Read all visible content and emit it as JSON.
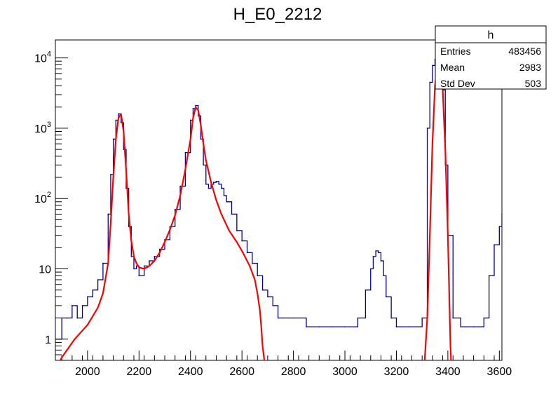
{
  "chart_data": {
    "type": "line",
    "title": "H_E0_2212",
    "xlabel": "",
    "ylabel": "",
    "xlim": [
      1875,
      3610
    ],
    "ylim": [
      0.5,
      18000
    ],
    "y_scale": "log",
    "grid": false,
    "x_ticks": [
      2000,
      2200,
      2400,
      2600,
      2800,
      3000,
      3200,
      3400,
      3600
    ],
    "x_tick_labels": [
      "2000",
      "2200",
      "2400",
      "2600",
      "2800",
      "3000",
      "3200",
      "3400",
      "3600"
    ],
    "y_ticks": [
      1,
      10,
      100,
      1000,
      10000
    ],
    "y_tick_labels": [
      {
        "base": "1",
        "exp": ""
      },
      {
        "base": "10",
        "exp": ""
      },
      {
        "base": "10",
        "exp": "2"
      },
      {
        "base": "10",
        "exp": "3"
      },
      {
        "base": "10",
        "exp": "4"
      }
    ],
    "stats_box": {
      "name": "h",
      "rows": [
        {
          "label": "Entries",
          "value": "483456"
        },
        {
          "label": "Mean",
          "value": "2983"
        },
        {
          "label": "Std Dev",
          "value": "503"
        }
      ]
    },
    "series": [
      {
        "color": "#000099",
        "style": "histogram",
        "x": [
          1880,
          1900,
          1920,
          1940,
          1960,
          1980,
          2000,
          2020,
          2040,
          2060,
          2080,
          2090,
          2100,
          2110,
          2120,
          2130,
          2140,
          2150,
          2160,
          2170,
          2180,
          2190,
          2200,
          2220,
          2240,
          2260,
          2280,
          2300,
          2320,
          2340,
          2360,
          2380,
          2400,
          2410,
          2420,
          2430,
          2440,
          2450,
          2460,
          2470,
          2480,
          2490,
          2500,
          2510,
          2520,
          2530,
          2540,
          2560,
          2580,
          2600,
          2620,
          2640,
          2660,
          2680,
          2700,
          2720,
          2740,
          2760,
          2800,
          2850,
          2900,
          2950,
          3000,
          3050,
          3080,
          3100,
          3110,
          3120,
          3130,
          3140,
          3150,
          3160,
          3180,
          3200,
          3250,
          3300,
          3320,
          3330,
          3340,
          3350,
          3360,
          3370,
          3380,
          3390,
          3400,
          3420,
          3450,
          3500,
          3540,
          3560,
          3580,
          3600,
          3610
        ],
        "y": [
          1,
          2,
          2,
          3,
          2,
          3,
          4,
          5,
          7,
          12,
          60,
          220,
          700,
          1300,
          1600,
          1200,
          500,
          140,
          40,
          15,
          10,
          11,
          8,
          11,
          13,
          15,
          19,
          26,
          40,
          70,
          150,
          450,
          1300,
          1900,
          2100,
          1500,
          700,
          300,
          160,
          140,
          160,
          170,
          175,
          160,
          140,
          110,
          90,
          60,
          35,
          25,
          17,
          12,
          8,
          5,
          4,
          3,
          2,
          2,
          2,
          1.5,
          1.5,
          1.5,
          1.5,
          2,
          5,
          10,
          15,
          18,
          17,
          13,
          8,
          4,
          2,
          1.5,
          1.5,
          2,
          1000,
          4500,
          7800,
          9500,
          9000,
          7000,
          3500,
          300,
          30,
          2,
          1.5,
          1.5,
          2,
          8,
          22,
          40,
          60
        ]
      },
      {
        "color": "#ff0000",
        "style": "curve",
        "x": [
          1880,
          1900,
          1920,
          1950,
          2000,
          2040,
          2060,
          2080,
          2090,
          2100,
          2110,
          2120,
          2130,
          2140,
          2150,
          2160,
          2170,
          2180,
          2190,
          2200,
          2220,
          2240,
          2260,
          2280,
          2300,
          2320,
          2340,
          2360,
          2380,
          2400,
          2410,
          2420,
          2430,
          2440,
          2450,
          2460,
          2480,
          2500,
          2520,
          2550,
          2580,
          2600,
          2630,
          2650,
          2660,
          2670,
          2675,
          2680,
          2690,
          3305,
          3310,
          3320,
          3330,
          3340,
          3350,
          3360,
          3370,
          3380,
          3390,
          3400,
          3410,
          3415
        ],
        "y": [
          0.4,
          0.55,
          0.7,
          1.0,
          1.6,
          2.8,
          4.5,
          12,
          45,
          200,
          700,
          1400,
          1600,
          900,
          250,
          60,
          25,
          15,
          12,
          10.5,
          10,
          11,
          13,
          17,
          24,
          36,
          58,
          110,
          260,
          700,
          1400,
          2000,
          1800,
          1100,
          600,
          350,
          170,
          95,
          60,
          35,
          24,
          18,
          11,
          7,
          4.5,
          2.5,
          1.5,
          0.8,
          0.4,
          0.3,
          0.5,
          2,
          30,
          600,
          4000,
          8900,
          8000,
          3500,
          500,
          30,
          0.8,
          0.3
        ]
      }
    ]
  }
}
